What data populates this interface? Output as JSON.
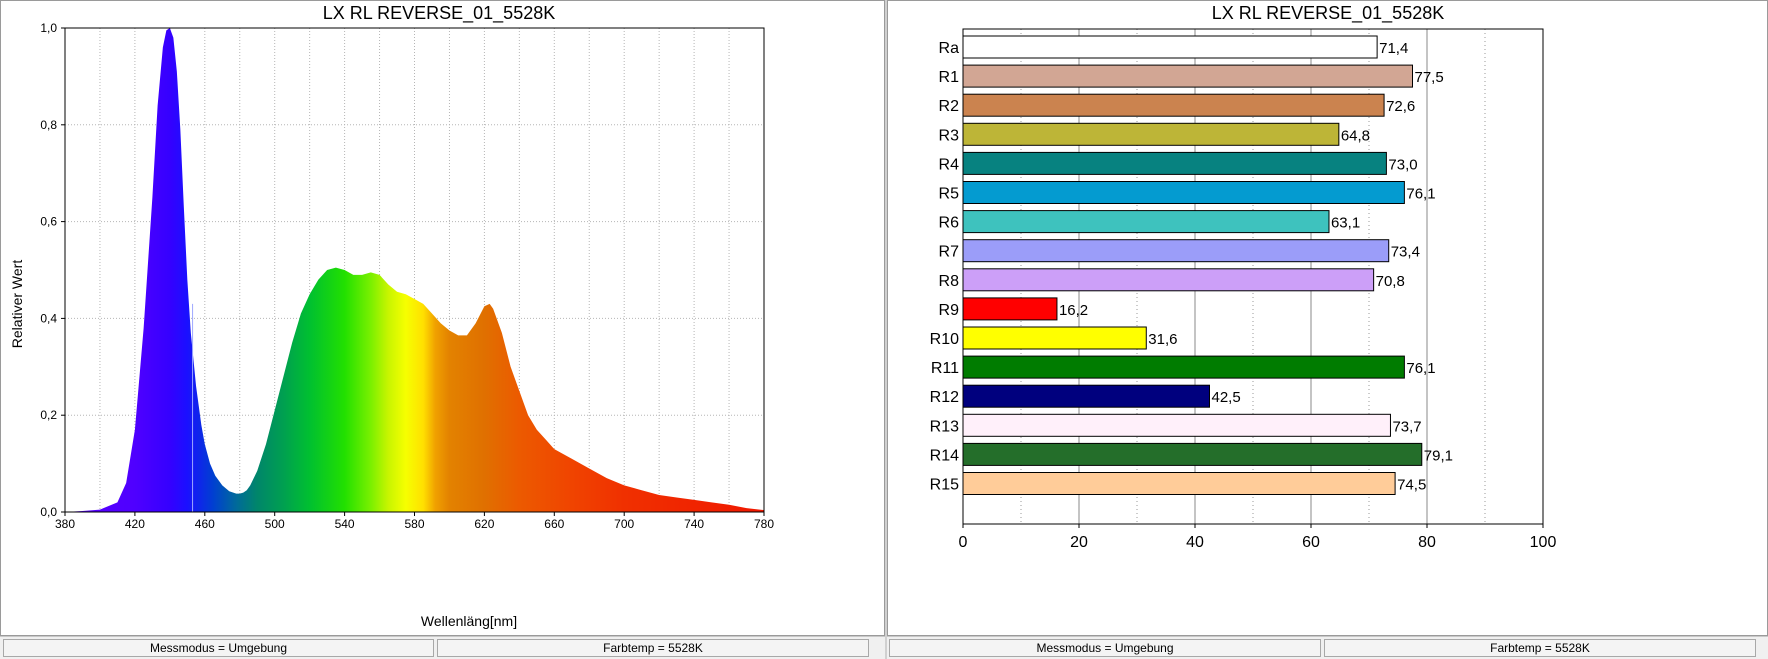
{
  "chart_data": [
    {
      "type": "area",
      "title": "LX RL REVERSE_01_5528K",
      "xlabel": "Wellenläng[nm]",
      "ylabel": "Relativer Wert",
      "xlim": [
        380,
        780
      ],
      "ylim": [
        0,
        1.0
      ],
      "x_ticks": [
        "380",
        "420",
        "460",
        "500",
        "540",
        "580",
        "620",
        "660",
        "700",
        "740",
        "780"
      ],
      "y_ticks": [
        "0.0",
        "0.2",
        "0.4",
        "0.6",
        "0.8",
        "1.0"
      ],
      "grid": true,
      "fill": "visible-spectrum gradient",
      "x": [
        380,
        390,
        400,
        410,
        415,
        420,
        425,
        430,
        433,
        436,
        438,
        440,
        442,
        444,
        446,
        448,
        450,
        452,
        455,
        458,
        460,
        463,
        466,
        470,
        474,
        478,
        480,
        482,
        484,
        486,
        490,
        495,
        500,
        505,
        510,
        515,
        520,
        525,
        530,
        535,
        540,
        545,
        550,
        555,
        560,
        565,
        570,
        575,
        580,
        585,
        590,
        595,
        600,
        605,
        610,
        615,
        620,
        623,
        625,
        630,
        635,
        640,
        645,
        650,
        655,
        660,
        670,
        680,
        690,
        700,
        710,
        720,
        730,
        740,
        750,
        760,
        770,
        780
      ],
      "values": [
        0.0,
        0.002,
        0.005,
        0.02,
        0.06,
        0.17,
        0.38,
        0.65,
        0.84,
        0.96,
        0.995,
        1.0,
        0.98,
        0.91,
        0.79,
        0.63,
        0.48,
        0.37,
        0.26,
        0.18,
        0.14,
        0.1,
        0.075,
        0.055,
        0.043,
        0.038,
        0.038,
        0.04,
        0.045,
        0.055,
        0.085,
        0.14,
        0.21,
        0.28,
        0.35,
        0.41,
        0.45,
        0.48,
        0.5,
        0.505,
        0.5,
        0.49,
        0.49,
        0.495,
        0.49,
        0.47,
        0.455,
        0.45,
        0.44,
        0.43,
        0.41,
        0.39,
        0.375,
        0.365,
        0.365,
        0.39,
        0.425,
        0.43,
        0.42,
        0.37,
        0.3,
        0.25,
        0.2,
        0.17,
        0.15,
        0.13,
        0.11,
        0.09,
        0.07,
        0.055,
        0.045,
        0.035,
        0.03,
        0.025,
        0.02,
        0.015,
        0.008,
        0.004
      ]
    },
    {
      "type": "bar",
      "orientation": "horizontal",
      "title": "LX RL REVERSE_01_5528K",
      "categories": [
        "Ra",
        "R1",
        "R2",
        "R3",
        "R4",
        "R5",
        "R6",
        "R7",
        "R8",
        "R9",
        "R10",
        "R11",
        "R12",
        "R13",
        "R14",
        "R15"
      ],
      "values": [
        71.4,
        77.5,
        72.6,
        64.8,
        73.0,
        76.1,
        63.1,
        73.4,
        70.8,
        16.2,
        31.6,
        76.1,
        42.5,
        73.7,
        79.1,
        74.5
      ],
      "value_labels": [
        "71,4",
        "77,5",
        "72,6",
        "64,8",
        "73,0",
        "76,1",
        "63,1",
        "73,4",
        "70,8",
        "16,2",
        "31,6",
        "76,1",
        "42,5",
        "73,7",
        "79,1",
        "74,5"
      ],
      "colors": [
        "#ffffff",
        "#d2a694",
        "#cb834f",
        "#bdb537",
        "#078280",
        "#049bd0",
        "#3ec2be",
        "#9b9df9",
        "#cc9ff8",
        "#ff0000",
        "#ffff00",
        "#007c00",
        "#00007e",
        "#fff0fa",
        "#246e2a",
        "#ffcc99"
      ],
      "x_ticks": [
        "0",
        "20",
        "40",
        "60",
        "80",
        "100"
      ],
      "xlim": [
        0,
        100
      ],
      "grid": true
    }
  ],
  "status": {
    "left": [
      "Messmodus = Umgebung",
      "Farbtemp = 5528K"
    ],
    "right": [
      "Messmodus = Umgebung",
      "Farbtemp = 5528K"
    ]
  }
}
